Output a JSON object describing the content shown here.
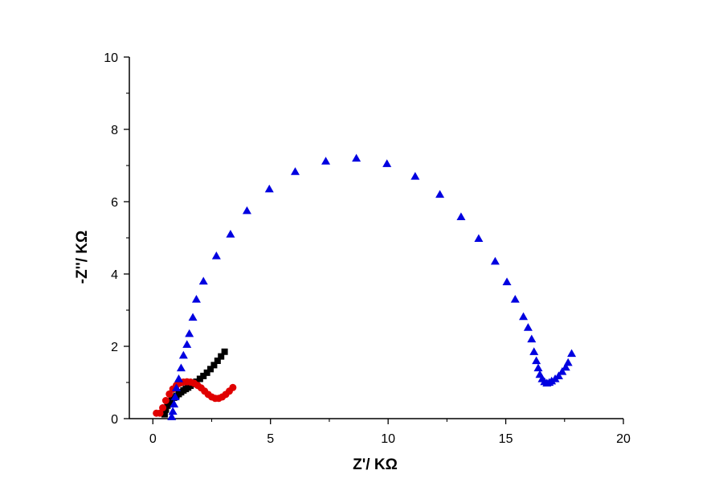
{
  "chart_data": {
    "type": "scatter",
    "xlabel": "Z'/ KΩ",
    "ylabel": "-Z''/ KΩ",
    "xlim": [
      -1,
      20
    ],
    "ylim": [
      0,
      10
    ],
    "xticks": [
      "0",
      "5",
      "10",
      "15",
      "20"
    ],
    "yticks": [
      "0",
      "2",
      "4",
      "6",
      "8",
      "10"
    ],
    "grid": false,
    "legend": "none",
    "series": [
      {
        "marker": "square",
        "color": "#000000",
        "points": [
          [
            0.5,
            0.12
          ],
          [
            0.55,
            0.25
          ],
          [
            0.62,
            0.36
          ],
          [
            0.7,
            0.45
          ],
          [
            0.8,
            0.52
          ],
          [
            0.9,
            0.58
          ],
          [
            1.0,
            0.63
          ],
          [
            1.1,
            0.68
          ],
          [
            1.2,
            0.73
          ],
          [
            1.3,
            0.78
          ],
          [
            1.4,
            0.82
          ],
          [
            1.5,
            0.86
          ],
          [
            1.6,
            0.91
          ],
          [
            1.7,
            0.96
          ],
          [
            1.85,
            1.02
          ],
          [
            2.0,
            1.1
          ],
          [
            2.15,
            1.18
          ],
          [
            2.3,
            1.27
          ],
          [
            2.45,
            1.37
          ],
          [
            2.6,
            1.48
          ],
          [
            2.75,
            1.6
          ],
          [
            2.9,
            1.72
          ],
          [
            3.05,
            1.85
          ]
        ]
      },
      {
        "marker": "circle",
        "color": "#e00000",
        "points": [
          [
            0.15,
            0.15
          ],
          [
            0.3,
            0.15
          ],
          [
            0.42,
            0.3
          ],
          [
            0.55,
            0.5
          ],
          [
            0.7,
            0.68
          ],
          [
            0.85,
            0.82
          ],
          [
            1.0,
            0.92
          ],
          [
            1.15,
            0.98
          ],
          [
            1.3,
            1.01
          ],
          [
            1.45,
            1.02
          ],
          [
            1.6,
            1.01
          ],
          [
            1.75,
            0.98
          ],
          [
            1.9,
            0.92
          ],
          [
            2.05,
            0.85
          ],
          [
            2.2,
            0.76
          ],
          [
            2.35,
            0.67
          ],
          [
            2.5,
            0.6
          ],
          [
            2.65,
            0.56
          ],
          [
            2.8,
            0.56
          ],
          [
            2.95,
            0.6
          ],
          [
            3.1,
            0.67
          ],
          [
            3.25,
            0.76
          ],
          [
            3.4,
            0.86
          ]
        ]
      },
      {
        "marker": "triangle",
        "color": "#0000e0",
        "points": [
          [
            0.8,
            0.05
          ],
          [
            0.85,
            0.2
          ],
          [
            0.9,
            0.4
          ],
          [
            0.95,
            0.6
          ],
          [
            1.0,
            0.85
          ],
          [
            1.1,
            1.1
          ],
          [
            1.2,
            1.4
          ],
          [
            1.3,
            1.75
          ],
          [
            1.45,
            2.05
          ],
          [
            1.55,
            2.35
          ],
          [
            1.7,
            2.8
          ],
          [
            1.85,
            3.3
          ],
          [
            2.15,
            3.8
          ],
          [
            2.7,
            4.5
          ],
          [
            3.3,
            5.1
          ],
          [
            4.0,
            5.75
          ],
          [
            4.95,
            6.35
          ],
          [
            6.05,
            6.83
          ],
          [
            7.35,
            7.12
          ],
          [
            8.65,
            7.2
          ],
          [
            9.95,
            7.05
          ],
          [
            11.15,
            6.7
          ],
          [
            12.2,
            6.2
          ],
          [
            13.1,
            5.58
          ],
          [
            13.85,
            4.98
          ],
          [
            14.55,
            4.35
          ],
          [
            15.05,
            3.78
          ],
          [
            15.4,
            3.3
          ],
          [
            15.75,
            2.82
          ],
          [
            15.95,
            2.52
          ],
          [
            16.1,
            2.2
          ],
          [
            16.2,
            1.85
          ],
          [
            16.3,
            1.6
          ],
          [
            16.38,
            1.4
          ],
          [
            16.45,
            1.22
          ],
          [
            16.55,
            1.1
          ],
          [
            16.65,
            1.02
          ],
          [
            16.75,
            0.98
          ],
          [
            16.85,
            1.0
          ],
          [
            16.95,
            1.04
          ],
          [
            17.1,
            1.1
          ],
          [
            17.25,
            1.18
          ],
          [
            17.4,
            1.3
          ],
          [
            17.55,
            1.42
          ],
          [
            17.65,
            1.55
          ],
          [
            17.8,
            1.8
          ]
        ]
      }
    ]
  }
}
